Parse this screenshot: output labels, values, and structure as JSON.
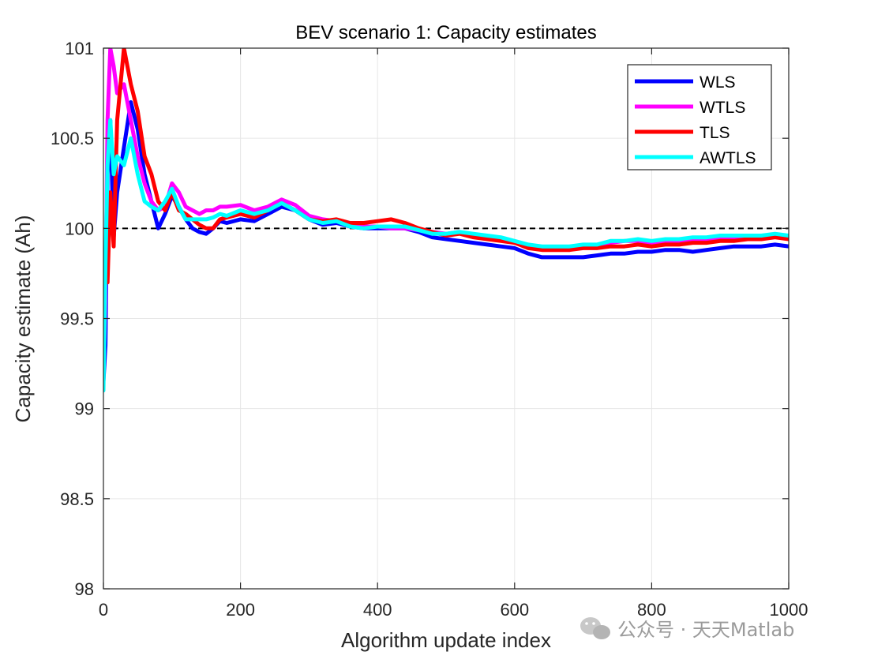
{
  "chart_data": {
    "type": "line",
    "title": "BEV scenario 1: Capacity estimates",
    "xlabel": "Algorithm update index",
    "ylabel": "Capacity estimate (Ah)",
    "xlim": [
      0,
      1000
    ],
    "ylim": [
      98,
      101
    ],
    "xticks": [
      0,
      200,
      400,
      600,
      800,
      1000
    ],
    "xtick_labels": [
      "0",
      "200",
      "400",
      "600",
      "800",
      "1000"
    ],
    "yticks": [
      98,
      98.5,
      99,
      99.5,
      100,
      100.5,
      101
    ],
    "ytick_labels": [
      "98",
      "98.5",
      "99",
      "99.5",
      "100",
      "100.5",
      "101"
    ],
    "grid": true,
    "legend_position": "top-right",
    "reference_line": {
      "y": 100,
      "style": "dashed",
      "color": "#000000"
    },
    "series": [
      {
        "name": "WLS",
        "color": "#0000ff",
        "x": [
          0,
          3,
          6,
          10,
          15,
          20,
          30,
          40,
          50,
          60,
          70,
          80,
          90,
          100,
          110,
          120,
          130,
          140,
          150,
          160,
          170,
          180,
          200,
          220,
          240,
          260,
          280,
          300,
          320,
          340,
          360,
          380,
          400,
          420,
          440,
          460,
          480,
          500,
          520,
          540,
          560,
          580,
          600,
          620,
          640,
          660,
          680,
          700,
          720,
          740,
          760,
          780,
          800,
          820,
          840,
          860,
          880,
          900,
          920,
          940,
          960,
          980,
          1000
        ],
        "values": [
          99.15,
          99.35,
          100.3,
          100.6,
          99.95,
          100.2,
          100.45,
          100.7,
          100.55,
          100.3,
          100.15,
          100.0,
          100.08,
          100.18,
          100.12,
          100.05,
          100.0,
          99.98,
          99.97,
          100.0,
          100.04,
          100.03,
          100.05,
          100.04,
          100.08,
          100.12,
          100.1,
          100.05,
          100.02,
          100.03,
          100.01,
          100.0,
          100.0,
          100.0,
          100.0,
          99.98,
          99.95,
          99.94,
          99.93,
          99.92,
          99.91,
          99.9,
          99.89,
          99.86,
          99.84,
          99.84,
          99.84,
          99.84,
          99.85,
          99.86,
          99.86,
          99.87,
          99.87,
          99.88,
          99.88,
          99.87,
          99.88,
          99.89,
          99.9,
          99.9,
          99.9,
          99.91,
          99.9
        ]
      },
      {
        "name": "WTLS",
        "color": "#ff00ff",
        "x": [
          0,
          3,
          6,
          10,
          15,
          20,
          30,
          40,
          50,
          60,
          70,
          80,
          90,
          100,
          110,
          120,
          130,
          140,
          150,
          160,
          170,
          180,
          200,
          220,
          240,
          260,
          280,
          300,
          320,
          340,
          360,
          380,
          400,
          420,
          440,
          460,
          480,
          500,
          520,
          540,
          560,
          580,
          600,
          620,
          640,
          660,
          680,
          700,
          720,
          740,
          760,
          780,
          800,
          820,
          840,
          860,
          880,
          900,
          920,
          940,
          960,
          980,
          1000
        ],
        "values": [
          99.2,
          99.6,
          100.6,
          101.0,
          100.9,
          100.75,
          100.8,
          100.6,
          100.4,
          100.25,
          100.15,
          100.1,
          100.12,
          100.25,
          100.2,
          100.12,
          100.1,
          100.08,
          100.1,
          100.1,
          100.12,
          100.12,
          100.13,
          100.1,
          100.12,
          100.16,
          100.13,
          100.07,
          100.05,
          100.04,
          100.02,
          100.01,
          100.01,
          100.0,
          100.0,
          99.99,
          99.98,
          99.97,
          99.98,
          99.96,
          99.95,
          99.94,
          99.92,
          99.9,
          99.89,
          99.89,
          99.88,
          99.9,
          99.9,
          99.92,
          99.93,
          99.93,
          99.92,
          99.93,
          99.93,
          99.94,
          99.94,
          99.95,
          99.95,
          99.95,
          99.96,
          99.96,
          99.95
        ]
      },
      {
        "name": "TLS",
        "color": "#ff0000",
        "x": [
          0,
          3,
          6,
          10,
          15,
          20,
          30,
          40,
          50,
          60,
          70,
          80,
          90,
          100,
          110,
          120,
          130,
          140,
          150,
          160,
          170,
          180,
          200,
          220,
          240,
          260,
          280,
          300,
          320,
          340,
          360,
          380,
          400,
          420,
          440,
          460,
          480,
          500,
          520,
          540,
          560,
          580,
          600,
          620,
          640,
          660,
          680,
          700,
          720,
          740,
          760,
          780,
          800,
          820,
          840,
          860,
          880,
          900,
          920,
          940,
          960,
          980,
          1000
        ],
        "values": [
          99.5,
          99.8,
          99.7,
          100.2,
          99.9,
          100.6,
          101.0,
          100.8,
          100.65,
          100.4,
          100.3,
          100.15,
          100.1,
          100.2,
          100.1,
          100.08,
          100.05,
          100.02,
          100.0,
          100.0,
          100.05,
          100.06,
          100.08,
          100.06,
          100.1,
          100.14,
          100.1,
          100.05,
          100.04,
          100.05,
          100.03,
          100.03,
          100.04,
          100.05,
          100.03,
          100.0,
          99.98,
          99.96,
          99.97,
          99.95,
          99.94,
          99.93,
          99.92,
          99.89,
          99.88,
          99.88,
          99.88,
          99.89,
          99.89,
          99.9,
          99.9,
          99.91,
          99.9,
          99.91,
          99.91,
          99.92,
          99.92,
          99.93,
          99.93,
          99.94,
          99.94,
          99.95,
          99.94
        ]
      },
      {
        "name": "AWTLS",
        "color": "#00ffff",
        "x": [
          0,
          3,
          6,
          10,
          15,
          20,
          30,
          40,
          50,
          60,
          70,
          80,
          90,
          100,
          110,
          120,
          130,
          140,
          150,
          160,
          170,
          180,
          200,
          220,
          240,
          260,
          280,
          300,
          320,
          340,
          360,
          380,
          400,
          420,
          440,
          460,
          480,
          500,
          520,
          540,
          560,
          580,
          600,
          620,
          640,
          660,
          680,
          700,
          720,
          740,
          760,
          780,
          800,
          820,
          840,
          860,
          880,
          900,
          920,
          940,
          960,
          980,
          1000
        ],
        "values": [
          99.1,
          99.8,
          100.35,
          100.6,
          100.3,
          100.4,
          100.35,
          100.5,
          100.3,
          100.15,
          100.12,
          100.1,
          100.15,
          100.22,
          100.12,
          100.05,
          100.05,
          100.05,
          100.05,
          100.06,
          100.08,
          100.07,
          100.1,
          100.08,
          100.1,
          100.14,
          100.1,
          100.05,
          100.03,
          100.04,
          100.01,
          100.0,
          100.01,
          100.01,
          100.01,
          99.99,
          99.97,
          99.97,
          99.98,
          99.97,
          99.96,
          99.95,
          99.93,
          99.91,
          99.9,
          99.9,
          99.9,
          99.91,
          99.91,
          99.93,
          99.93,
          99.94,
          99.93,
          99.94,
          99.94,
          99.95,
          99.95,
          99.96,
          99.96,
          99.96,
          99.96,
          99.97,
          99.96
        ]
      }
    ]
  },
  "watermark": {
    "text": "公众号 · 天天Matlab",
    "icon": "wechat-icon"
  }
}
